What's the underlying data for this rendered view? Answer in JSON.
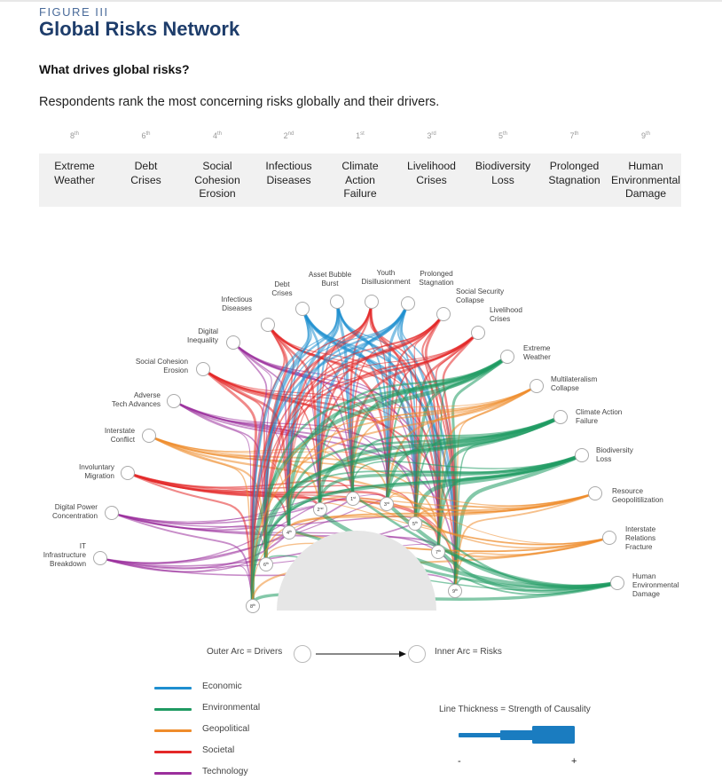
{
  "figure_label": "FIGURE III",
  "title": "Global Risks Network",
  "subheading": "What drives global risks?",
  "description": "Respondents rank the most concerning risks globally and their drivers.",
  "ranking": [
    {
      "rank": "8",
      "suffix": "th",
      "label": [
        "Extreme",
        "Weather"
      ]
    },
    {
      "rank": "6",
      "suffix": "th",
      "label": [
        "Debt",
        "Crises"
      ]
    },
    {
      "rank": "4",
      "suffix": "th",
      "label": [
        "Social",
        "Cohesion",
        "Erosion"
      ]
    },
    {
      "rank": "2",
      "suffix": "nd",
      "label": [
        "Infectious",
        "Diseases"
      ]
    },
    {
      "rank": "1",
      "suffix": "st",
      "label": [
        "Climate",
        "Action",
        "Failure"
      ]
    },
    {
      "rank": "3",
      "suffix": "rd",
      "label": [
        "Livelihood",
        "Crises"
      ]
    },
    {
      "rank": "5",
      "suffix": "th",
      "label": [
        "Biodiversity",
        "Loss"
      ]
    },
    {
      "rank": "7",
      "suffix": "th",
      "label": [
        "Prolonged",
        "Stagnation"
      ]
    },
    {
      "rank": "9",
      "suffix": "th",
      "label": [
        "Human",
        "Environmental",
        "Damage"
      ]
    }
  ],
  "outer_drivers": [
    {
      "label": [
        "IT",
        "Infrastructure",
        "Breakdown"
      ],
      "category": "technology"
    },
    {
      "label": [
        "Digital Power",
        "Concentration"
      ],
      "category": "technology"
    },
    {
      "label": [
        "Involuntary",
        "Migration"
      ],
      "category": "societal"
    },
    {
      "label": [
        "Interstate",
        "Conflict"
      ],
      "category": "geopolitical"
    },
    {
      "label": [
        "Adverse",
        "Tech Advances"
      ],
      "category": "technology"
    },
    {
      "label": [
        "Social Cohesion",
        "Erosion"
      ],
      "category": "societal"
    },
    {
      "label": [
        "Digital",
        "Inequality"
      ],
      "category": "technology"
    },
    {
      "label": [
        "Infectious",
        "Diseases"
      ],
      "category": "societal"
    },
    {
      "label": [
        "Debt",
        "Crises"
      ],
      "category": "economic"
    },
    {
      "label": [
        "Asset Bubble",
        "Burst"
      ],
      "category": "economic"
    },
    {
      "label": [
        "Youth",
        "Disillusionment"
      ],
      "category": "societal"
    },
    {
      "label": [
        "Prolonged",
        "Stagnation"
      ],
      "category": "economic"
    },
    {
      "label": [
        "Social Security",
        "Collapse"
      ],
      "category": "societal"
    },
    {
      "label": [
        "Livelihood",
        "Crises"
      ],
      "category": "societal"
    },
    {
      "label": [
        "Extreme",
        "Weather"
      ],
      "category": "environmental"
    },
    {
      "label": [
        "Multilateralism",
        "Collapse"
      ],
      "category": "geopolitical"
    },
    {
      "label": [
        "Climate Action",
        "Failure"
      ],
      "category": "environmental"
    },
    {
      "label": [
        "Biodiversity",
        "Loss"
      ],
      "category": "environmental"
    },
    {
      "label": [
        "Resource",
        "Geopolitilization"
      ],
      "category": "geopolitical"
    },
    {
      "label": [
        "Interstate",
        "Relations",
        "Fracture"
      ],
      "category": "geopolitical"
    },
    {
      "label": [
        "Human",
        "Environmental",
        "Damage"
      ],
      "category": "environmental"
    }
  ],
  "inner_risks": [
    {
      "rank": "8",
      "suffix": "th"
    },
    {
      "rank": "6",
      "suffix": "th"
    },
    {
      "rank": "4",
      "suffix": "th"
    },
    {
      "rank": "2",
      "suffix": "nd"
    },
    {
      "rank": "1",
      "suffix": "st"
    },
    {
      "rank": "3",
      "suffix": "rd"
    },
    {
      "rank": "5",
      "suffix": "th"
    },
    {
      "rank": "7",
      "suffix": "th"
    },
    {
      "rank": "9",
      "suffix": "th"
    }
  ],
  "flow": {
    "outer": "Outer Arc = Drivers",
    "inner": "Inner Arc = Risks"
  },
  "legend": [
    {
      "key": "economic",
      "label": "Economic",
      "color": "#1f8fd0"
    },
    {
      "key": "environmental",
      "label": "Environmental",
      "color": "#1f9a62"
    },
    {
      "key": "geopolitical",
      "label": "Geopolitical",
      "color": "#ef8c2b"
    },
    {
      "key": "societal",
      "label": "Societal",
      "color": "#e42828"
    },
    {
      "key": "technology",
      "label": "Technology",
      "color": "#9b2f9c"
    }
  ],
  "thickness": {
    "title": "Line Thickness = Strength of Causality",
    "minus": "-",
    "plus": "+",
    "color": "#1a7cc0"
  }
}
